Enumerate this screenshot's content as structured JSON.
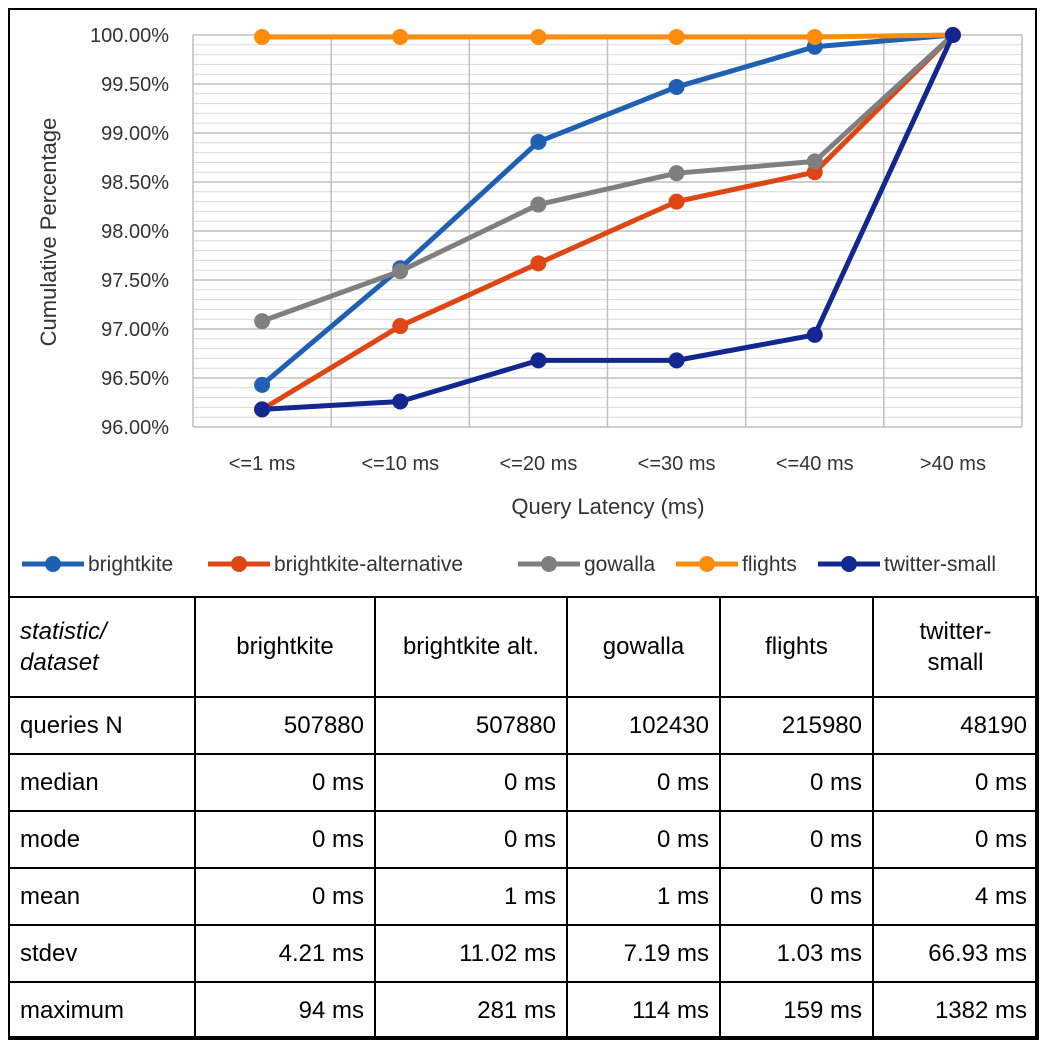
{
  "chart_data": {
    "type": "line",
    "xlabel": "Query Latency (ms)",
    "ylabel": "Cumulative Percentage",
    "categories": [
      "<=1 ms",
      "<=10 ms",
      "<=20 ms",
      "<=30 ms",
      "<=40 ms",
      ">40 ms"
    ],
    "ylim": [
      96.0,
      100.0
    ],
    "yticks": [
      "96.00%",
      "96.50%",
      "97.00%",
      "97.50%",
      "98.00%",
      "98.50%",
      "99.00%",
      "99.50%",
      "100.00%"
    ],
    "grid": "on",
    "legend_position": "bottom",
    "series": [
      {
        "name": "brightkite",
        "color": "#1f5fb4",
        "values": [
          96.43,
          97.62,
          98.91,
          99.47,
          99.88,
          100.0
        ]
      },
      {
        "name": "brightkite-alternative",
        "color": "#e04514",
        "values": [
          96.18,
          97.03,
          97.67,
          98.3,
          98.6,
          100.0
        ]
      },
      {
        "name": "gowalla",
        "color": "#7f7f7f",
        "values": [
          97.08,
          97.59,
          98.27,
          98.59,
          98.71,
          100.0
        ]
      },
      {
        "name": "flights",
        "color": "#ff8c0a",
        "values": [
          99.98,
          99.98,
          99.98,
          99.98,
          99.98,
          100.0
        ]
      },
      {
        "name": "twitter-small",
        "color": "#12278f",
        "values": [
          96.18,
          96.26,
          96.68,
          96.68,
          96.94,
          100.0
        ]
      }
    ]
  },
  "table": {
    "corner_line1": "statistic/",
    "corner_line2": "dataset",
    "headers": [
      {
        "line1": "brightkite",
        "line2": ""
      },
      {
        "line1": "brightkite alt.",
        "line2": ""
      },
      {
        "line1": "gowalla",
        "line2": ""
      },
      {
        "line1": "flights",
        "line2": ""
      },
      {
        "line1": "twitter-",
        "line2": "small"
      }
    ],
    "rows": [
      {
        "label": "queries N",
        "cells": [
          "507880",
          "507880",
          "102430",
          "215980",
          "48190"
        ]
      },
      {
        "label": "median",
        "cells": [
          "0 ms",
          "0 ms",
          "0 ms",
          "0 ms",
          "0 ms"
        ]
      },
      {
        "label": "mode",
        "cells": [
          "0 ms",
          "0 ms",
          "0 ms",
          "0 ms",
          "0 ms"
        ]
      },
      {
        "label": "mean",
        "cells": [
          "0 ms",
          "1 ms",
          "1 ms",
          "0 ms",
          "4 ms"
        ]
      },
      {
        "label": "stdev",
        "cells": [
          "4.21 ms",
          "11.02 ms",
          "7.19 ms",
          "1.03 ms",
          "66.93 ms"
        ]
      },
      {
        "label": "maximum",
        "cells": [
          "94 ms",
          "281 ms",
          "114 ms",
          "159 ms",
          "1382 ms"
        ]
      }
    ]
  }
}
